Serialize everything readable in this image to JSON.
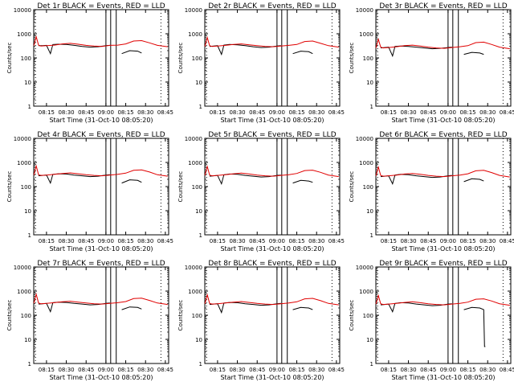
{
  "figure": {
    "background": "#ffffff",
    "colors": {
      "events": "#000000",
      "lld": "#e00000",
      "axis": "#000000"
    }
  },
  "chart_data": [
    {
      "type": "line",
      "title": "Det 1r BLACK = Events, RED = LLD",
      "xlabel": "Start Time (31-Oct-10 08:05:20)",
      "ylabel": "Counts/sec",
      "yscale": "log",
      "ylim": [
        1,
        10000
      ],
      "xlim": [
        8.0889,
        9.7917
      ],
      "x_ticks": [
        "08:15",
        "08:30",
        "08:45",
        "09:00",
        "08:15",
        "08:30",
        "08:45"
      ],
      "y_ticks": [
        "1",
        "10",
        "100",
        "1000",
        "10000"
      ],
      "series": [
        {
          "name": "Events",
          "x": [
            8.15,
            8.2,
            8.25,
            8.3,
            8.33,
            8.4,
            8.5,
            8.6,
            8.7,
            8.8,
            8.9,
            9.0,
            9.05,
            9.1,
            9.2,
            9.3,
            9.4,
            9.45
          ],
          "y": [
            320,
            320,
            330,
            150,
            360,
            370,
            360,
            330,
            300,
            280,
            290,
            320,
            330,
            null,
            150,
            200,
            190,
            160
          ]
        },
        {
          "name": "LLD",
          "x": [
            8.09,
            8.12,
            8.15,
            8.18,
            8.25,
            8.35,
            8.45,
            8.55,
            8.65,
            8.75,
            8.85,
            8.95,
            9.05,
            9.15,
            9.25,
            9.35,
            9.45,
            9.55,
            9.65,
            9.78
          ],
          "y": [
            320,
            750,
            340,
            310,
            320,
            340,
            380,
            400,
            370,
            330,
            310,
            300,
            330,
            340,
            380,
            500,
            520,
            420,
            330,
            290
          ]
        }
      ]
    },
    {
      "type": "line",
      "title": "Det 2r BLACK = Events, RED = LLD",
      "xlabel": "Start Time (31-Oct-10 08:05:20)",
      "ylabel": "Counts/sec",
      "yscale": "log",
      "ylim": [
        1,
        10000
      ],
      "xlim": [
        8.0889,
        9.7917
      ],
      "x_ticks": [
        "08:15",
        "08:30",
        "08:45",
        "09:00",
        "08:15",
        "08:30",
        "08:45"
      ],
      "y_ticks": [
        "1",
        "10",
        "100",
        "1000",
        "10000"
      ],
      "series": [
        {
          "name": "Events",
          "x": [
            8.15,
            8.2,
            8.25,
            8.3,
            8.33,
            8.4,
            8.5,
            8.6,
            8.7,
            8.8,
            8.9,
            9.0,
            9.05,
            9.1,
            9.2,
            9.3,
            9.4,
            9.45
          ],
          "y": [
            300,
            310,
            320,
            140,
            340,
            360,
            350,
            320,
            290,
            270,
            280,
            310,
            320,
            null,
            150,
            190,
            180,
            150
          ]
        },
        {
          "name": "LLD",
          "x": [
            8.09,
            8.12,
            8.15,
            8.18,
            8.25,
            8.35,
            8.45,
            8.55,
            8.65,
            8.75,
            8.85,
            8.95,
            9.05,
            9.15,
            9.25,
            9.35,
            9.45,
            9.55,
            9.65,
            9.78
          ],
          "y": [
            300,
            700,
            320,
            300,
            310,
            330,
            360,
            380,
            350,
            320,
            300,
            290,
            310,
            330,
            360,
            480,
            500,
            400,
            320,
            280
          ]
        }
      ]
    },
    {
      "type": "line",
      "title": "Det 3r BLACK = Events, RED = LLD",
      "xlabel": "Start Time (31-Oct-10 08:05:20)",
      "ylabel": "Counts/sec",
      "yscale": "log",
      "ylim": [
        1,
        10000
      ],
      "xlim": [
        8.0889,
        9.7917
      ],
      "x_ticks": [
        "08:15",
        "08:30",
        "08:45",
        "09:00",
        "08:15",
        "08:30",
        "08:45"
      ],
      "y_ticks": [
        "1",
        "10",
        "100",
        "1000",
        "10000"
      ],
      "series": [
        {
          "name": "Events",
          "x": [
            8.15,
            8.2,
            8.25,
            8.3,
            8.33,
            8.4,
            8.5,
            8.6,
            8.7,
            8.8,
            8.9,
            9.0,
            9.05,
            9.1,
            9.2,
            9.3,
            9.4,
            9.45
          ],
          "y": [
            260,
            270,
            280,
            120,
            300,
            310,
            300,
            280,
            260,
            240,
            250,
            270,
            280,
            null,
            140,
            170,
            160,
            140
          ]
        },
        {
          "name": "LLD",
          "x": [
            8.09,
            8.12,
            8.15,
            8.18,
            8.25,
            8.35,
            8.45,
            8.55,
            8.65,
            8.75,
            8.85,
            8.95,
            9.05,
            9.15,
            9.25,
            9.35,
            9.45,
            9.55,
            9.65,
            9.78
          ],
          "y": [
            260,
            600,
            280,
            260,
            270,
            290,
            320,
            340,
            310,
            280,
            260,
            250,
            270,
            290,
            320,
            430,
            450,
            360,
            280,
            240
          ]
        }
      ]
    },
    {
      "type": "line",
      "title": "Det 4r BLACK = Events, RED = LLD",
      "xlabel": "Start Time (31-Oct-10 08:05:20)",
      "ylabel": "Counts/sec",
      "yscale": "log",
      "ylim": [
        1,
        10000
      ],
      "xlim": [
        8.0889,
        9.7917
      ],
      "x_ticks": [
        "08:15",
        "08:30",
        "08:45",
        "09:00",
        "08:15",
        "08:30",
        "08:45"
      ],
      "y_ticks": [
        "1",
        "10",
        "100",
        "1000",
        "10000"
      ],
      "series": [
        {
          "name": "Events",
          "x": [
            8.15,
            8.2,
            8.25,
            8.3,
            8.33,
            8.4,
            8.5,
            8.6,
            8.7,
            8.8,
            8.9,
            9.0,
            9.05,
            9.1,
            9.2,
            9.3,
            9.4,
            9.45
          ],
          "y": [
            280,
            290,
            300,
            140,
            320,
            340,
            330,
            300,
            280,
            260,
            270,
            300,
            310,
            null,
            140,
            190,
            180,
            150
          ]
        },
        {
          "name": "LLD",
          "x": [
            8.09,
            8.12,
            8.15,
            8.18,
            8.25,
            8.35,
            8.45,
            8.55,
            8.65,
            8.75,
            8.85,
            8.95,
            9.05,
            9.15,
            9.25,
            9.35,
            9.45,
            9.55,
            9.65,
            9.78
          ],
          "y": [
            300,
            720,
            310,
            290,
            300,
            320,
            350,
            370,
            340,
            310,
            290,
            280,
            300,
            320,
            360,
            470,
            490,
            400,
            310,
            270
          ]
        }
      ]
    },
    {
      "type": "line",
      "title": "Det 5r BLACK = Events, RED = LLD",
      "xlabel": "Start Time (31-Oct-10 08:05:20)",
      "ylabel": "Counts/sec",
      "yscale": "log",
      "ylim": [
        1,
        10000
      ],
      "xlim": [
        8.0889,
        9.7917
      ],
      "x_ticks": [
        "08:15",
        "08:30",
        "08:45",
        "09:00",
        "08:15",
        "08:30",
        "08:45"
      ],
      "y_ticks": [
        "1",
        "10",
        "100",
        "1000",
        "10000"
      ],
      "series": [
        {
          "name": "Events",
          "x": [
            8.15,
            8.2,
            8.25,
            8.3,
            8.33,
            8.4,
            8.5,
            8.6,
            8.7,
            8.8,
            8.9,
            9.0,
            9.05,
            9.1,
            9.2,
            9.3,
            9.4,
            9.45
          ],
          "y": [
            270,
            280,
            290,
            130,
            310,
            330,
            320,
            290,
            270,
            250,
            260,
            290,
            300,
            null,
            140,
            180,
            170,
            150
          ]
        },
        {
          "name": "LLD",
          "x": [
            8.09,
            8.12,
            8.15,
            8.18,
            8.25,
            8.35,
            8.45,
            8.55,
            8.65,
            8.75,
            8.85,
            8.95,
            9.05,
            9.15,
            9.25,
            9.35,
            9.45,
            9.55,
            9.65,
            9.78
          ],
          "y": [
            290,
            680,
            300,
            280,
            290,
            310,
            340,
            360,
            330,
            300,
            280,
            270,
            290,
            310,
            350,
            460,
            480,
            390,
            300,
            260
          ]
        }
      ]
    },
    {
      "type": "line",
      "title": "Det 6r BLACK = Events, RED = LLD",
      "xlabel": "Start Time (31-Oct-10 08:05:20)",
      "ylabel": "Counts/sec",
      "yscale": "log",
      "ylim": [
        1,
        10000
      ],
      "xlim": [
        8.0889,
        9.7917
      ],
      "x_ticks": [
        "08:15",
        "08:30",
        "08:45",
        "09:00",
        "08:15",
        "08:30",
        "08:45"
      ],
      "y_ticks": [
        "1",
        "10",
        "100",
        "1000",
        "10000"
      ],
      "series": [
        {
          "name": "Events",
          "x": [
            8.15,
            8.2,
            8.25,
            8.3,
            8.33,
            8.4,
            8.5,
            8.6,
            8.7,
            8.8,
            8.9,
            9.0,
            9.05,
            9.1,
            9.2,
            9.3,
            9.4,
            9.45
          ],
          "y": [
            260,
            270,
            280,
            130,
            300,
            320,
            310,
            280,
            260,
            240,
            250,
            280,
            290,
            null,
            160,
            210,
            200,
            170
          ]
        },
        {
          "name": "LLD",
          "x": [
            8.09,
            8.12,
            8.15,
            8.18,
            8.25,
            8.35,
            8.45,
            8.55,
            8.65,
            8.75,
            8.85,
            8.95,
            9.05,
            9.15,
            9.25,
            9.35,
            9.45,
            9.55,
            9.65,
            9.78
          ],
          "y": [
            280,
            650,
            290,
            270,
            280,
            300,
            330,
            350,
            320,
            290,
            270,
            260,
            280,
            300,
            340,
            450,
            470,
            380,
            290,
            250
          ]
        }
      ]
    },
    {
      "type": "line",
      "title": "Det 7r BLACK = Events, RED = LLD",
      "xlabel": "Start Time (31-Oct-10 08:05:20)",
      "ylabel": "Counts/sec",
      "yscale": "log",
      "ylim": [
        1,
        10000
      ],
      "xlim": [
        8.0889,
        9.7917
      ],
      "x_ticks": [
        "08:15",
        "08:30",
        "08:45",
        "09:00",
        "08:15",
        "08:30",
        "08:45"
      ],
      "y_ticks": [
        "1",
        "10",
        "100",
        "1000",
        "10000"
      ],
      "series": [
        {
          "name": "Events",
          "x": [
            8.15,
            8.2,
            8.25,
            8.3,
            8.33,
            8.4,
            8.5,
            8.6,
            8.7,
            8.8,
            8.9,
            9.0,
            9.05,
            9.1,
            9.2,
            9.3,
            9.4,
            9.45
          ],
          "y": [
            290,
            300,
            310,
            140,
            330,
            350,
            340,
            310,
            290,
            270,
            280,
            310,
            320,
            null,
            170,
            220,
            210,
            180
          ]
        },
        {
          "name": "LLD",
          "x": [
            8.09,
            8.12,
            8.15,
            8.18,
            8.25,
            8.35,
            8.45,
            8.55,
            8.65,
            8.75,
            8.85,
            8.95,
            9.05,
            9.15,
            9.25,
            9.35,
            9.45,
            9.55,
            9.65,
            9.78
          ],
          "y": [
            310,
            740,
            320,
            300,
            310,
            330,
            360,
            380,
            350,
            320,
            300,
            290,
            310,
            330,
            370,
            490,
            510,
            410,
            320,
            280
          ]
        }
      ]
    },
    {
      "type": "line",
      "title": "Det 8r BLACK = Events, RED = LLD",
      "xlabel": "Start Time (31-Oct-10 08:05:20)",
      "ylabel": "Counts/sec",
      "yscale": "log",
      "ylim": [
        1,
        10000
      ],
      "xlim": [
        8.0889,
        9.7917
      ],
      "x_ticks": [
        "08:15",
        "08:30",
        "08:45",
        "09:00",
        "08:15",
        "08:30",
        "08:45"
      ],
      "y_ticks": [
        "1",
        "10",
        "100",
        "1000",
        "10000"
      ],
      "series": [
        {
          "name": "Events",
          "x": [
            8.15,
            8.2,
            8.25,
            8.3,
            8.33,
            8.4,
            8.5,
            8.6,
            8.7,
            8.8,
            8.9,
            9.0,
            9.05,
            9.1,
            9.2,
            9.3,
            9.4,
            9.45
          ],
          "y": [
            280,
            290,
            300,
            130,
            320,
            340,
            330,
            300,
            280,
            260,
            270,
            300,
            310,
            null,
            170,
            210,
            200,
            170
          ]
        },
        {
          "name": "LLD",
          "x": [
            8.09,
            8.12,
            8.15,
            8.18,
            8.25,
            8.35,
            8.45,
            8.55,
            8.65,
            8.75,
            8.85,
            8.95,
            9.05,
            9.15,
            9.25,
            9.35,
            9.45,
            9.55,
            9.65,
            9.78
          ],
          "y": [
            300,
            700,
            310,
            290,
            300,
            320,
            350,
            370,
            340,
            310,
            290,
            280,
            300,
            320,
            360,
            480,
            500,
            400,
            310,
            270
          ]
        }
      ]
    },
    {
      "type": "line",
      "title": "Det 9r BLACK = Events, RED = LLD",
      "xlabel": "Start Time (31-Oct-10 08:05:20)",
      "ylabel": "Counts/sec",
      "yscale": "log",
      "ylim": [
        1,
        10000
      ],
      "xlim": [
        8.0889,
        9.7917
      ],
      "x_ticks": [
        "08:15",
        "08:30",
        "08:45",
        "09:00",
        "08:15",
        "08:30",
        "08:45"
      ],
      "y_ticks": [
        "1",
        "10",
        "100",
        "1000",
        "10000"
      ],
      "series": [
        {
          "name": "Events",
          "x": [
            8.15,
            8.2,
            8.25,
            8.3,
            8.33,
            8.4,
            8.5,
            8.6,
            8.7,
            8.8,
            8.9,
            9.0,
            9.05,
            9.1,
            9.2,
            9.3,
            9.4,
            9.45,
            9.46,
            9.47
          ],
          "y": [
            270,
            280,
            290,
            140,
            310,
            330,
            320,
            290,
            270,
            250,
            260,
            290,
            300,
            null,
            170,
            210,
            200,
            170,
            5,
            5
          ]
        },
        {
          "name": "LLD",
          "x": [
            8.09,
            8.12,
            8.15,
            8.18,
            8.25,
            8.35,
            8.45,
            8.55,
            8.65,
            8.75,
            8.85,
            8.95,
            9.05,
            9.15,
            9.25,
            9.35,
            9.45,
            9.55,
            9.65,
            9.78
          ],
          "y": [
            290,
            660,
            300,
            280,
            290,
            310,
            340,
            360,
            330,
            300,
            280,
            270,
            290,
            310,
            350,
            460,
            480,
            390,
            300,
            260
          ]
        }
      ]
    }
  ]
}
